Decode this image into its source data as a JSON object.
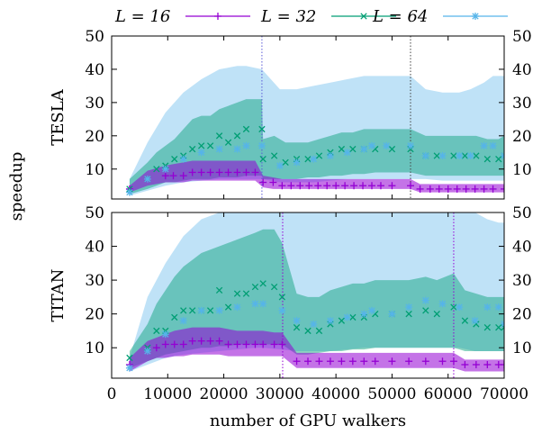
{
  "chart_data": {
    "type": "scatter",
    "xlabel": "number of GPU walkers",
    "ylabel": "speedup",
    "xlim": [
      0,
      70000
    ],
    "ylim": [
      1,
      50
    ],
    "x_ticks": [
      0,
      10000,
      20000,
      30000,
      40000,
      50000,
      60000,
      70000
    ],
    "y_ticks": [
      10,
      20,
      30,
      40,
      50
    ],
    "grid": false,
    "legend_position": "top",
    "colors": {
      "L16": "#9400d3",
      "L32": "#009e73",
      "L64": "#56b4e9"
    },
    "legend": [
      {
        "label": "L = 16",
        "marker": "+",
        "key": "L16"
      },
      {
        "label": "L = 32",
        "marker": "x",
        "key": "L32"
      },
      {
        "label": "L = 64",
        "marker": "*",
        "key": "L64"
      }
    ],
    "panels": [
      {
        "name": "TESLA",
        "vlines": [
          26800,
          53300
        ],
        "series": [
          {
            "name": "L = 16",
            "key": "L16",
            "x": [
              3200,
              6400,
              9600,
              11000,
              12800,
              14400,
              16000,
              17600,
              19200,
              20800,
              22400,
              24000,
              25600,
              27000,
              28800,
              30400,
              32000,
              33600,
              35200,
              36800,
              38400,
              40000,
              41600,
              43200,
              44800,
              46400,
              48000,
              50000,
              53300,
              55000,
              56800,
              58400,
              60000,
              61600,
              63200,
              64800,
              66400,
              68000,
              70000
            ],
            "y": [
              4,
              7,
              8,
              8,
              8,
              9,
              9,
              9,
              9,
              9,
              9,
              9,
              9,
              6,
              6,
              5,
              5,
              5,
              5,
              5,
              5,
              5,
              5,
              5,
              5,
              5,
              5,
              5,
              5,
              4,
              4,
              4,
              4,
              4,
              4,
              4,
              4,
              4,
              4
            ],
            "band_low": [
              3,
              5,
              6,
              6,
              6,
              6.5,
              6.5,
              6.5,
              6.5,
              6.5,
              6.5,
              6.5,
              6.5,
              4.5,
              4,
              4,
              4,
              4,
              4,
              4,
              4,
              4,
              4,
              4,
              4,
              4,
              4,
              4,
              4,
              3,
              3,
              3,
              3,
              3,
              3,
              3,
              3,
              3,
              3
            ],
            "band_high": [
              5,
              9.5,
              11,
              11.5,
              12,
              12.5,
              12.5,
              12.5,
              12.5,
              12.5,
              12.5,
              12.5,
              12.5,
              8,
              7.5,
              7,
              7,
              7,
              7,
              7,
              7,
              7,
              7,
              7,
              7,
              7,
              7,
              7,
              7,
              5.5,
              5.5,
              5.5,
              5.5,
              5.5,
              5.5,
              5.5,
              5.5,
              5.5,
              5.5
            ]
          },
          {
            "name": "L = 32",
            "key": "L32",
            "x": [
              3200,
              6400,
              8000,
              9600,
              11200,
              12800,
              14400,
              16000,
              17600,
              19200,
              20800,
              22400,
              24000,
              26800,
              27000,
              29000,
              31000,
              33000,
              35000,
              37000,
              39000,
              41000,
              43000,
              45000,
              47000,
              50000,
              53300,
              56000,
              58000,
              61000,
              63000,
              65000,
              67000,
              69000,
              70000
            ],
            "y": [
              4,
              7,
              10,
              11,
              13,
              14,
              16,
              17,
              17,
              20,
              18,
              20,
              22,
              22,
              13,
              14,
              12,
              13,
              13,
              14,
              15,
              16,
              16,
              16,
              16,
              16,
              16,
              14,
              14,
              14,
              14,
              14,
              13,
              13,
              14
            ],
            "band_low": [
              2.5,
              4,
              5,
              6,
              6,
              6.5,
              7,
              7,
              7,
              7.5,
              7.5,
              7.5,
              8,
              8,
              7,
              7,
              7,
              7,
              7.5,
              7.5,
              8,
              8,
              8.5,
              8.5,
              9,
              9,
              9,
              8,
              8,
              8,
              8,
              8,
              8,
              8,
              8
            ],
            "band_high": [
              7,
              12,
              15,
              17,
              19,
              22,
              25,
              26,
              26,
              28,
              29,
              30,
              31,
              31,
              19,
              20,
              18,
              18,
              18,
              19,
              20,
              21,
              21,
              22,
              22,
              22,
              22,
              20,
              20,
              20,
              20,
              20,
              19,
              19,
              20
            ]
          },
          {
            "name": "L = 64",
            "key": "L64",
            "x": [
              3200,
              6400,
              9600,
              12800,
              16000,
              19200,
              22400,
              24000,
              26800,
              30000,
              33000,
              36000,
              39000,
              42000,
              45000,
              46400,
              49000,
              53300,
              56000,
              59000,
              62000,
              64000,
              66400,
              68000,
              70000
            ],
            "y": [
              3,
              7,
              10,
              13,
              15,
              16,
              16,
              17,
              17,
              11,
              12,
              13,
              14,
              15,
              16,
              17,
              17,
              17,
              14,
              14,
              14,
              14,
              17,
              17,
              14
            ],
            "band_low": [
              2,
              3.5,
              5,
              6,
              6.5,
              7,
              7,
              7,
              7,
              6,
              6,
              6,
              6.5,
              7,
              7,
              7,
              7,
              7,
              7,
              6.5,
              6.5,
              6.5,
              6.5,
              6.5,
              6.5
            ],
            "band_high": [
              7,
              18,
              27,
              33,
              37,
              40,
              41,
              41,
              40,
              34,
              34,
              35,
              36,
              37,
              38,
              38,
              38,
              38,
              34,
              33,
              33,
              34,
              36,
              38,
              38
            ]
          }
        ]
      },
      {
        "name": "TITAN",
        "vlines": [
          30500,
          61000
        ],
        "series": [
          {
            "name": "L = 16",
            "key": "L16",
            "x": [
              3200,
              6400,
              8000,
              9600,
              11200,
              12800,
              14400,
              16000,
              17600,
              19200,
              20800,
              22400,
              24000,
              25600,
              27000,
              29000,
              30400,
              33000,
              35000,
              37000,
              39000,
              41000,
              43000,
              45000,
              47000,
              50000,
              53000,
              56000,
              59000,
              61000,
              63000,
              65000,
              67000,
              69000,
              70000
            ],
            "y": [
              5,
              9,
              10,
              11,
              11,
              11,
              12,
              12,
              12,
              12,
              11,
              11,
              11,
              11,
              11,
              11,
              11,
              6,
              6,
              6,
              6,
              6,
              6,
              6,
              6,
              6,
              6,
              6,
              6,
              6,
              5,
              5,
              5,
              5,
              5
            ],
            "band_low": [
              3,
              6,
              7,
              7,
              7.5,
              7.5,
              8,
              8,
              8,
              8,
              7.5,
              7.5,
              7.5,
              7.5,
              7.5,
              7.5,
              7.5,
              4,
              4,
              4,
              4,
              4,
              4,
              4,
              4,
              4,
              4,
              4,
              4,
              4,
              3,
              3,
              3,
              3,
              3
            ],
            "band_high": [
              7,
              12,
              13,
              14,
              15,
              15.5,
              16,
              16,
              16,
              16,
              15.5,
              15,
              15,
              15,
              15,
              14.5,
              14.5,
              8.5,
              8.5,
              8.5,
              8.5,
              8.5,
              8.5,
              8.5,
              8.5,
              8.5,
              8.5,
              8.5,
              8.5,
              8.5,
              6.5,
              6.5,
              6.5,
              6.5,
              6.5
            ]
          },
          {
            "name": "L = 32",
            "key": "L32",
            "x": [
              3200,
              6400,
              8000,
              9600,
              11200,
              12800,
              14400,
              16000,
              17600,
              19200,
              20800,
              22400,
              24000,
              25600,
              27000,
              29000,
              30400,
              33000,
              35000,
              37000,
              39000,
              41000,
              43000,
              45000,
              47000,
              50000,
              53000,
              56000,
              58000,
              61000,
              63000,
              65000,
              67000,
              69000,
              70000
            ],
            "y": [
              7,
              10,
              15,
              15,
              19,
              21,
              21,
              21,
              21,
              27,
              22,
              26,
              26,
              28,
              29,
              28,
              25,
              16,
              15,
              15,
              17,
              18,
              19,
              19,
              20,
              20,
              20,
              21,
              20,
              22,
              18,
              17,
              16,
              16,
              16
            ],
            "band_low": [
              4,
              6,
              7,
              8,
              8.5,
              9,
              9.5,
              10,
              10,
              10.5,
              10.5,
              11,
              11,
              11,
              11,
              11,
              11,
              8,
              8,
              8.5,
              9,
              9,
              9.5,
              9.5,
              10,
              10,
              10,
              10,
              10,
              10,
              9,
              9,
              9,
              9,
              9
            ],
            "band_high": [
              9,
              17,
              23,
              27,
              31,
              34,
              36,
              38,
              39,
              40,
              41,
              42,
              43,
              44,
              45,
              45,
              41,
              26,
              25,
              25,
              27,
              28,
              29,
              29,
              30,
              30,
              30,
              31,
              30,
              32,
              27,
              26,
              25,
              25,
              25
            ]
          },
          {
            "name": "L = 64",
            "key": "L64",
            "x": [
              3200,
              6400,
              9600,
              12800,
              16000,
              19200,
              22400,
              25600,
              27000,
              30400,
              33000,
              36000,
              39000,
              42000,
              45000,
              46400,
              50000,
              53000,
              56000,
              59000,
              62000,
              64800,
              67000,
              69000,
              70000
            ],
            "y": [
              4,
              9,
              14,
              18,
              21,
              21,
              22,
              23,
              23,
              21,
              18,
              17,
              18,
              19,
              20,
              21,
              20,
              22,
              24,
              23,
              22,
              18,
              22,
              22,
              17
            ],
            "band_low": [
              3,
              5,
              7,
              8,
              8.5,
              9,
              9.5,
              10,
              10,
              9.5,
              9,
              9,
              9,
              9.5,
              10,
              10,
              10,
              10,
              10,
              10,
              10,
              9,
              9,
              9,
              9
            ],
            "band_high": [
              7,
              25,
              35,
              43,
              48,
              50,
              50,
              50,
              50,
              50,
              50,
              50,
              50,
              50,
              50,
              50,
              50,
              50,
              50,
              50,
              50,
              50,
              48,
              47,
              47
            ]
          }
        ]
      }
    ]
  }
}
